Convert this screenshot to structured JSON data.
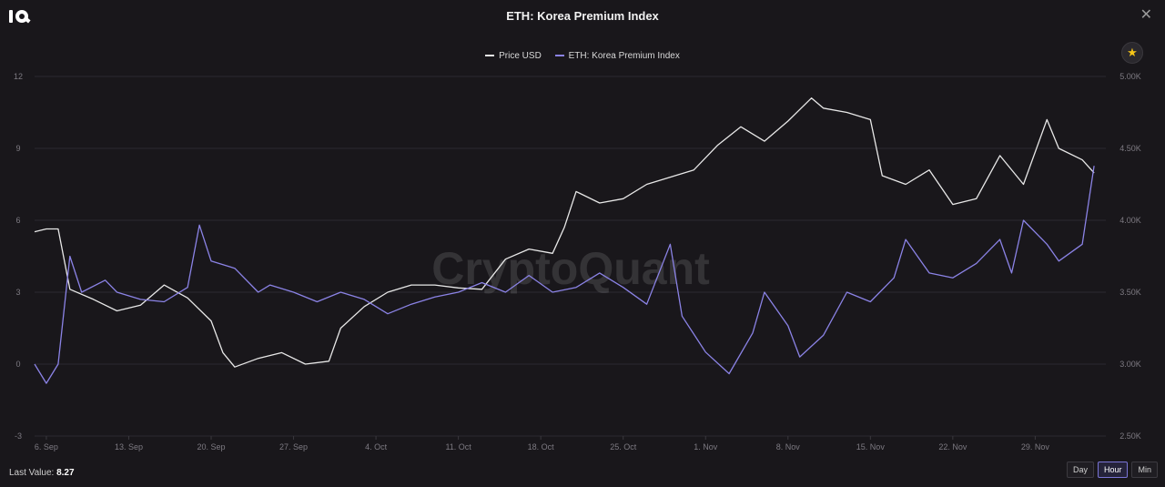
{
  "header": {
    "title": "ETH: Korea Premium Index",
    "close_label": "✕"
  },
  "colors": {
    "price": "#e8e8e8",
    "premium": "#8b83e6",
    "grid": "#2c2a30",
    "axis_text": "#7d7a82",
    "background": "#19171b"
  },
  "favorite_icon": "star-icon",
  "watermark": "CryptoQuant",
  "footer": {
    "last_value_label": "Last Value:",
    "last_value": "8.27"
  },
  "range_buttons": [
    {
      "label": "Day",
      "active": false
    },
    {
      "label": "Hour",
      "active": true
    },
    {
      "label": "Min",
      "active": false
    }
  ],
  "chart_data": {
    "type": "line",
    "title": "ETH: Korea Premium Index",
    "legend_position": "top-center",
    "grid": true,
    "x_ticks": [
      "6. Sep",
      "13. Sep",
      "20. Sep",
      "27. Sep",
      "4. Oct",
      "11. Oct",
      "18. Oct",
      "25. Oct",
      "1. Nov",
      "8. Nov",
      "15. Nov",
      "22. Nov",
      "29. Nov"
    ],
    "y_left": {
      "ylim": [
        -3,
        12
      ],
      "ticks": [
        "12",
        "9",
        "6",
        "3",
        "0",
        "-3"
      ]
    },
    "y_right": {
      "ylim": [
        2500,
        5000
      ],
      "ticks": [
        "5.00K",
        "4.50K",
        "4.00K",
        "3.50K",
        "3.00K",
        "2.50K"
      ]
    },
    "series": [
      {
        "name": "Price USD",
        "axis": "right",
        "x": [
          "2021-09-05",
          "2021-09-06",
          "2021-09-07",
          "2021-09-08",
          "2021-09-10",
          "2021-09-12",
          "2021-09-14",
          "2021-09-16",
          "2021-09-18",
          "2021-09-20",
          "2021-09-21",
          "2021-09-22",
          "2021-09-24",
          "2021-09-26",
          "2021-09-28",
          "2021-09-30",
          "2021-10-01",
          "2021-10-03",
          "2021-10-05",
          "2021-10-07",
          "2021-10-09",
          "2021-10-11",
          "2021-10-13",
          "2021-10-15",
          "2021-10-17",
          "2021-10-19",
          "2021-10-20",
          "2021-10-21",
          "2021-10-23",
          "2021-10-25",
          "2021-10-27",
          "2021-10-29",
          "2021-10-31",
          "2021-11-02",
          "2021-11-04",
          "2021-11-06",
          "2021-11-08",
          "2021-11-10",
          "2021-11-11",
          "2021-11-13",
          "2021-11-15",
          "2021-11-16",
          "2021-11-18",
          "2021-11-20",
          "2021-11-22",
          "2021-11-24",
          "2021-11-26",
          "2021-11-28",
          "2021-11-30",
          "2021-12-01",
          "2021-12-03",
          "2021-12-04"
        ],
        "values": [
          3920,
          3940,
          3940,
          3520,
          3450,
          3370,
          3410,
          3550,
          3460,
          3300,
          3080,
          2980,
          3040,
          3080,
          3000,
          3020,
          3250,
          3400,
          3500,
          3550,
          3550,
          3530,
          3520,
          3730,
          3800,
          3770,
          3950,
          4200,
          4120,
          4150,
          4250,
          4300,
          4350,
          4520,
          4650,
          4550,
          4690,
          4850,
          4780,
          4750,
          4700,
          4310,
          4250,
          4350,
          4110,
          4150,
          4450,
          4250,
          4700,
          4500,
          4420,
          4330
        ]
      },
      {
        "name": "ETH: Korea Premium Index",
        "axis": "left",
        "x": [
          "2021-09-05",
          "2021-09-06",
          "2021-09-07",
          "2021-09-08",
          "2021-09-09",
          "2021-09-11",
          "2021-09-12",
          "2021-09-14",
          "2021-09-16",
          "2021-09-18",
          "2021-09-19",
          "2021-09-20",
          "2021-09-22",
          "2021-09-24",
          "2021-09-25",
          "2021-09-27",
          "2021-09-29",
          "2021-10-01",
          "2021-10-03",
          "2021-10-05",
          "2021-10-07",
          "2021-10-09",
          "2021-10-11",
          "2021-10-13",
          "2021-10-15",
          "2021-10-17",
          "2021-10-19",
          "2021-10-21",
          "2021-10-23",
          "2021-10-25",
          "2021-10-27",
          "2021-10-29",
          "2021-10-30",
          "2021-11-01",
          "2021-11-03",
          "2021-11-05",
          "2021-11-06",
          "2021-11-08",
          "2021-11-09",
          "2021-11-11",
          "2021-11-13",
          "2021-11-15",
          "2021-11-17",
          "2021-11-18",
          "2021-11-20",
          "2021-11-22",
          "2021-11-24",
          "2021-11-26",
          "2021-11-27",
          "2021-11-28",
          "2021-11-30",
          "2021-12-01",
          "2021-12-03",
          "2021-12-04"
        ],
        "values": [
          0.0,
          -0.8,
          0.0,
          4.5,
          3.0,
          3.5,
          3.0,
          2.7,
          2.6,
          3.2,
          5.8,
          4.3,
          4.0,
          3.0,
          3.3,
          3.0,
          2.6,
          3.0,
          2.7,
          2.1,
          2.5,
          2.8,
          3.0,
          3.4,
          3.0,
          3.7,
          3.0,
          3.2,
          3.8,
          3.2,
          2.5,
          5.0,
          2.0,
          0.5,
          -0.4,
          1.3,
          3.0,
          1.6,
          0.3,
          1.2,
          3.0,
          2.6,
          3.6,
          5.2,
          3.8,
          3.6,
          4.2,
          5.2,
          3.8,
          6.0,
          5.0,
          4.3,
          5.0,
          8.27
        ]
      }
    ]
  }
}
